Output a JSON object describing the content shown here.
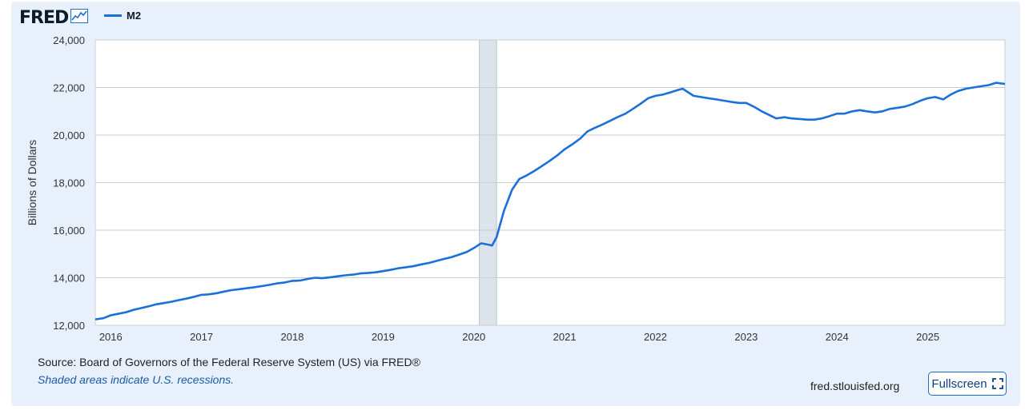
{
  "brand": {
    "name": "FRED",
    "icon": "fred-graph-icon"
  },
  "legend": {
    "label": "M2",
    "color": "#1a6fd8"
  },
  "source_text": "Source: Board of Governors of the Federal Reserve System (US) via FRED®",
  "note_text": "Shaded areas indicate U.S. recessions.",
  "site_text": "fred.stlouisfed.org",
  "fullscreen": {
    "label": "Fullscreen",
    "icon": "fullscreen-icon"
  },
  "colors": {
    "line": "#1a6fd8",
    "recession": "#dde3ea",
    "accent": "#1a6fd8"
  },
  "chart_data": {
    "type": "line",
    "ylabel": "Billions of Dollars",
    "xlim": [
      2015.83,
      2025.85
    ],
    "ylim": [
      12000,
      24000
    ],
    "y_ticks": [
      12000,
      14000,
      16000,
      18000,
      20000,
      22000,
      24000
    ],
    "y_tick_labels": [
      "12,000",
      "14,000",
      "16,000",
      "18,000",
      "20,000",
      "22,000",
      "24,000"
    ],
    "x_ticks": [
      2016,
      2017,
      2018,
      2019,
      2020,
      2021,
      2022,
      2023,
      2024,
      2025
    ],
    "x_tick_labels": [
      "2016",
      "2017",
      "2018",
      "2019",
      "2020",
      "2021",
      "2022",
      "2023",
      "2024",
      "2025"
    ],
    "grid": true,
    "recessions": [
      [
        2020.06,
        2020.25
      ]
    ],
    "series": [
      {
        "name": "M2",
        "x": [
          2015.83,
          2015.92,
          2016.0,
          2016.08,
          2016.17,
          2016.25,
          2016.33,
          2016.42,
          2016.5,
          2016.58,
          2016.67,
          2016.75,
          2016.83,
          2016.92,
          2017.0,
          2017.08,
          2017.17,
          2017.25,
          2017.33,
          2017.42,
          2017.5,
          2017.58,
          2017.67,
          2017.75,
          2017.83,
          2017.92,
          2018.0,
          2018.08,
          2018.17,
          2018.25,
          2018.33,
          2018.42,
          2018.5,
          2018.58,
          2018.67,
          2018.75,
          2018.83,
          2018.92,
          2019.0,
          2019.08,
          2019.17,
          2019.25,
          2019.33,
          2019.42,
          2019.5,
          2019.58,
          2019.67,
          2019.75,
          2019.83,
          2019.92,
          2020.0,
          2020.08,
          2020.17,
          2020.2,
          2020.25,
          2020.33,
          2020.42,
          2020.5,
          2020.58,
          2020.67,
          2020.75,
          2020.83,
          2020.92,
          2021.0,
          2021.08,
          2021.17,
          2021.25,
          2021.33,
          2021.42,
          2021.5,
          2021.58,
          2021.67,
          2021.75,
          2021.83,
          2021.92,
          2022.0,
          2022.08,
          2022.17,
          2022.25,
          2022.3,
          2022.42,
          2022.5,
          2022.58,
          2022.67,
          2022.75,
          2022.83,
          2022.92,
          2023.0,
          2023.08,
          2023.17,
          2023.25,
          2023.33,
          2023.42,
          2023.5,
          2023.58,
          2023.67,
          2023.75,
          2023.83,
          2023.92,
          2024.0,
          2024.08,
          2024.17,
          2024.25,
          2024.33,
          2024.42,
          2024.5,
          2024.58,
          2024.67,
          2024.75,
          2024.83,
          2024.92,
          2025.0,
          2025.08,
          2025.17,
          2025.25,
          2025.33,
          2025.42,
          2025.5,
          2025.58,
          2025.67,
          2025.75,
          2025.85
        ],
        "values": [
          12250,
          12300,
          12420,
          12480,
          12550,
          12650,
          12720,
          12800,
          12880,
          12930,
          12990,
          13060,
          13120,
          13200,
          13280,
          13300,
          13350,
          13420,
          13480,
          13520,
          13560,
          13600,
          13650,
          13700,
          13760,
          13800,
          13870,
          13880,
          13950,
          14000,
          13980,
          14020,
          14060,
          14100,
          14130,
          14180,
          14200,
          14230,
          14280,
          14330,
          14400,
          14440,
          14480,
          14560,
          14620,
          14700,
          14790,
          14860,
          14960,
          15080,
          15250,
          15450,
          15380,
          15350,
          15700,
          16800,
          17700,
          18150,
          18300,
          18500,
          18700,
          18900,
          19150,
          19400,
          19600,
          19850,
          20150,
          20300,
          20450,
          20600,
          20750,
          20900,
          21100,
          21300,
          21550,
          21650,
          21700,
          21800,
          21900,
          21950,
          21650,
          21600,
          21550,
          21500,
          21450,
          21400,
          21350,
          21350,
          21200,
          21000,
          20850,
          20700,
          20750,
          20700,
          20680,
          20650,
          20650,
          20700,
          20800,
          20900,
          20900,
          21000,
          21050,
          21000,
          20950,
          21000,
          21100,
          21150,
          21200,
          21300,
          21450,
          21550,
          21600,
          21500,
          21700,
          21850,
          21950,
          22000,
          22050,
          22100,
          22200,
          22150
        ]
      }
    ]
  }
}
